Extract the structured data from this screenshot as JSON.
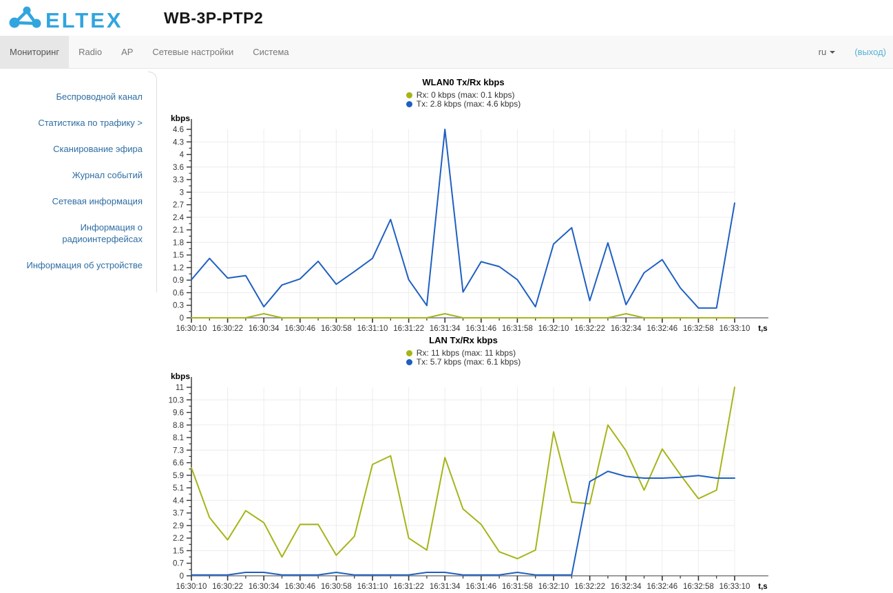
{
  "header": {
    "logo_text": "ELTEX",
    "title": "WB-3P-PTP2",
    "brand_color": "#31a5de"
  },
  "nav": {
    "tabs": [
      {
        "label": "Мониторинг",
        "active": true
      },
      {
        "label": "Radio",
        "active": false
      },
      {
        "label": "AP",
        "active": false
      },
      {
        "label": "Сетевые настройки",
        "active": false
      },
      {
        "label": "Система",
        "active": false
      }
    ],
    "language": "ru",
    "logout_label": "(выход)"
  },
  "sidebar": {
    "items": [
      {
        "label": "Беспроводной канал",
        "active": false
      },
      {
        "label": "Статистика по трафику >",
        "active": true
      },
      {
        "label": "Сканирование эфира",
        "active": false
      },
      {
        "label": "Журнал событий",
        "active": false
      },
      {
        "label": "Сетевая информация",
        "active": false
      },
      {
        "label": "Информация о радиоинтерфейсах",
        "active": false
      },
      {
        "label": "Информация об устройстве",
        "active": false
      }
    ]
  },
  "colors": {
    "rx": "#a6b417",
    "tx": "#1e5fc1",
    "grid": "#ececec",
    "axis_x": "#9c9c9c",
    "axis_y": "#333333",
    "tick": "#333333",
    "label": "#333333"
  },
  "chart_data": [
    {
      "type": "line",
      "name": "wlan0-txrx",
      "title": "WLAN0 Tx/Rx kbps",
      "ylabel": "kbps",
      "xlabel": "t,s",
      "legend_position": "top",
      "grid": true,
      "ylim": [
        0,
        4.6
      ],
      "y_ticks": [
        "4.6",
        "4.3",
        "4",
        "3.6",
        "3.3",
        "3",
        "2.7",
        "2.4",
        "2.1",
        "1.8",
        "1.5",
        "1.2",
        "0.9",
        "0.6",
        "0.3",
        "0"
      ],
      "x": [
        "16:30:10",
        "16:30:16",
        "16:30:22",
        "16:30:28",
        "16:30:34",
        "16:30:40",
        "16:30:46",
        "16:30:52",
        "16:30:58",
        "16:31:04",
        "16:31:10",
        "16:31:16",
        "16:31:22",
        "16:31:28",
        "16:31:34",
        "16:31:40",
        "16:31:46",
        "16:31:52",
        "16:31:58",
        "16:32:04",
        "16:32:10",
        "16:32:16",
        "16:32:22",
        "16:32:28",
        "16:32:34",
        "16:32:40",
        "16:32:46",
        "16:32:52",
        "16:32:58",
        "16:33:04",
        "16:33:10"
      ],
      "x_tick_labels": [
        "16:30:10",
        "16:30:22",
        "16:30:34",
        "16:30:46",
        "16:30:58",
        "16:31:10",
        "16:31:22",
        "16:31:34",
        "16:31:46",
        "16:31:58",
        "16:32:10",
        "16:32:22",
        "16:32:34",
        "16:32:46",
        "16:32:58",
        "16:33:10"
      ],
      "legend": [
        "Rx: 0 kbps (max: 0.1 kbps)",
        "Tx: 2.8 kbps (max: 4.6 kbps)"
      ],
      "series": [
        {
          "name": "Rx",
          "color": "#a6b417",
          "values": [
            0,
            0,
            0,
            0,
            0.1,
            0,
            0,
            0,
            0,
            0,
            0,
            0,
            0,
            0,
            0.1,
            0,
            0,
            0,
            0,
            0,
            0,
            0,
            0,
            0,
            0.1,
            0,
            0,
            0,
            0,
            0,
            0
          ]
        },
        {
          "name": "Tx",
          "color": "#1e5fc1",
          "values": [
            0.93,
            1.45,
            0.97,
            1.03,
            0.27,
            0.8,
            0.95,
            1.38,
            0.82,
            1.13,
            1.45,
            2.4,
            0.93,
            0.3,
            4.6,
            0.63,
            1.37,
            1.25,
            0.93,
            0.27,
            1.8,
            2.2,
            0.42,
            1.83,
            0.32,
            1.1,
            1.42,
            0.73,
            0.24,
            0.24,
            2.8
          ]
        }
      ]
    },
    {
      "type": "line",
      "name": "lan-txrx",
      "title": "LAN Tx/Rx kbps",
      "ylabel": "kbps",
      "xlabel": "t,s",
      "legend_position": "top",
      "grid": true,
      "ylim": [
        0,
        11
      ],
      "y_ticks": [
        "11",
        "10.3",
        "9.6",
        "8.8",
        "8.1",
        "7.3",
        "6.6",
        "5.9",
        "5.1",
        "4.4",
        "3.7",
        "2.9",
        "2.2",
        "1.5",
        "0.7",
        "0"
      ],
      "x": [
        "16:30:10",
        "16:30:16",
        "16:30:22",
        "16:30:28",
        "16:30:34",
        "16:30:40",
        "16:30:46",
        "16:30:52",
        "16:30:58",
        "16:31:04",
        "16:31:10",
        "16:31:16",
        "16:31:22",
        "16:31:28",
        "16:31:34",
        "16:31:40",
        "16:31:46",
        "16:31:52",
        "16:31:58",
        "16:32:04",
        "16:32:10",
        "16:32:16",
        "16:32:22",
        "16:32:28",
        "16:32:34",
        "16:32:40",
        "16:32:46",
        "16:32:52",
        "16:32:58",
        "16:33:04",
        "16:33:10"
      ],
      "x_tick_labels": [
        "16:30:10",
        "16:30:22",
        "16:30:34",
        "16:30:46",
        "16:30:58",
        "16:31:10",
        "16:31:22",
        "16:31:34",
        "16:31:46",
        "16:31:58",
        "16:32:10",
        "16:32:22",
        "16:32:34",
        "16:32:46",
        "16:32:58",
        "16:33:10"
      ],
      "legend": [
        "Rx: 11 kbps (max: 11 kbps)",
        "Tx: 5.7 kbps (max: 6.1 kbps)"
      ],
      "series": [
        {
          "name": "Rx",
          "color": "#a6b417",
          "values": [
            6.3,
            3.4,
            2.1,
            3.8,
            3.1,
            1.1,
            3.0,
            3.0,
            1.2,
            2.3,
            6.5,
            7.0,
            2.2,
            1.5,
            6.9,
            3.9,
            3.0,
            1.4,
            1.0,
            1.5,
            8.4,
            4.3,
            4.2,
            8.8,
            7.3,
            5.0,
            7.4,
            5.9,
            4.5,
            5.0,
            11.0
          ]
        },
        {
          "name": "Tx",
          "color": "#1e5fc1",
          "values": [
            0.05,
            0.05,
            0.05,
            0.2,
            0.2,
            0.05,
            0.05,
            0.05,
            0.2,
            0.05,
            0.05,
            0.05,
            0.05,
            0.2,
            0.2,
            0.05,
            0.05,
            0.05,
            0.2,
            0.05,
            0.05,
            0.05,
            5.5,
            6.1,
            5.8,
            5.7,
            5.7,
            5.75,
            5.85,
            5.7,
            5.7
          ]
        }
      ]
    }
  ]
}
